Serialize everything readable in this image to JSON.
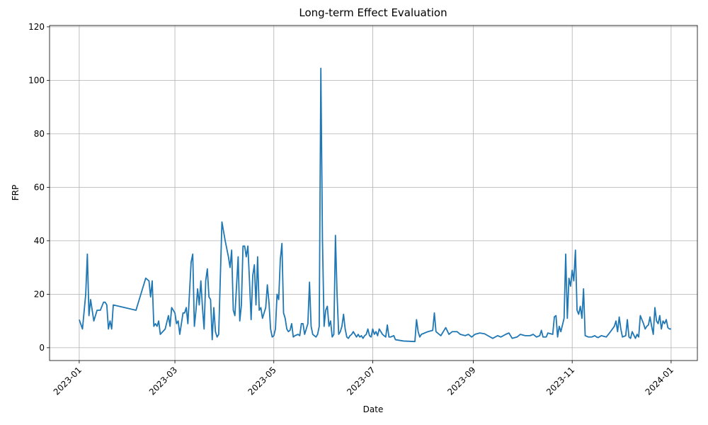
{
  "chart_data": {
    "type": "line",
    "title": "Long-term Effect Evaluation",
    "x_label": "Date",
    "y_label": "FRP",
    "color": "#1f77b4",
    "grid": true,
    "xlim": [
      -18.3,
      381.2
    ],
    "ylim": [
      -4.8,
      120.5
    ],
    "xticks": [
      {
        "value": 0,
        "label": "2023-01"
      },
      {
        "value": 59,
        "label": "2023-03"
      },
      {
        "value": 120,
        "label": "2023-05"
      },
      {
        "value": 181,
        "label": "2023-07"
      },
      {
        "value": 243,
        "label": "2023-09"
      },
      {
        "value": 304,
        "label": "2023-11"
      },
      {
        "value": 365,
        "label": "2024-01"
      }
    ],
    "yticks": [
      0,
      20,
      40,
      60,
      80,
      100,
      120
    ],
    "x": [
      0,
      2,
      4,
      5,
      6,
      7,
      9,
      11,
      13,
      15,
      16,
      17,
      18,
      19,
      20,
      21,
      35,
      41,
      43,
      44,
      45,
      46,
      47,
      48,
      49,
      50,
      53,
      55,
      56,
      57,
      59,
      60,
      61,
      62,
      64,
      65,
      66,
      67,
      69,
      70,
      71,
      72,
      73,
      74,
      75,
      76,
      77,
      78,
      79,
      80,
      81,
      82,
      83,
      84,
      85,
      86,
      88,
      90,
      92,
      93,
      94,
      95,
      96,
      98,
      99,
      100,
      101,
      102,
      103,
      104,
      105,
      106,
      107,
      108,
      109,
      110,
      111,
      112,
      113,
      114,
      115,
      116,
      117,
      118,
      119,
      120,
      121,
      122,
      123,
      124,
      125,
      126,
      127,
      128,
      129,
      130,
      131,
      132,
      133,
      135,
      136,
      137,
      138,
      139,
      140,
      141,
      142,
      143,
      144,
      145,
      146,
      147,
      148,
      149,
      150,
      151,
      152,
      153,
      154,
      155,
      156,
      157,
      158,
      159,
      160,
      161,
      162,
      163,
      164,
      165,
      166,
      167,
      168,
      169,
      170,
      171,
      172,
      173,
      174,
      175,
      176,
      177,
      178,
      179,
      180,
      181,
      182,
      183,
      184,
      185,
      186,
      187,
      188,
      189,
      190,
      191,
      192,
      194,
      195,
      200,
      207,
      208,
      209,
      210,
      211,
      213,
      215,
      218,
      219,
      220,
      223,
      226,
      228,
      230,
      233,
      235,
      238,
      240,
      242,
      244,
      247,
      250,
      252,
      255,
      258,
      260,
      263,
      265,
      267,
      270,
      272,
      275,
      278,
      280,
      282,
      284,
      285,
      286,
      288,
      289,
      292,
      293,
      294,
      295,
      296,
      297,
      299,
      300,
      301,
      302,
      303,
      304,
      305,
      306,
      307,
      308,
      309,
      310,
      311,
      312,
      314,
      316,
      318,
      319,
      320,
      322,
      325,
      327,
      330,
      331,
      332,
      333,
      334,
      335,
      337,
      338,
      339,
      340,
      341,
      343,
      344,
      345,
      346,
      348,
      349,
      350,
      351,
      352,
      353,
      354,
      355,
      356,
      357,
      358,
      359,
      360,
      361,
      362,
      363,
      364,
      365
    ],
    "values": [
      10.5,
      7,
      20,
      35,
      12,
      18,
      10,
      14,
      14,
      17,
      17,
      16,
      7,
      10,
      7,
      16,
      14,
      26,
      25,
      19,
      25,
      8,
      9,
      8,
      10,
      5,
      7,
      12,
      8,
      15,
      13,
      9,
      10,
      5,
      13,
      13,
      15,
      9,
      32,
      35,
      8,
      14,
      22,
      16,
      25,
      15,
      7,
      25,
      29.5,
      19,
      18,
      3,
      15,
      6,
      4,
      5,
      47,
      40,
      34,
      30,
      36.5,
      14,
      12,
      34,
      10,
      16,
      38,
      38,
      34,
      38,
      25,
      10.5,
      27,
      31,
      16,
      34,
      14,
      15,
      11,
      13,
      15,
      23.5,
      17,
      7,
      4,
      4.5,
      7,
      20,
      18,
      33,
      39,
      13,
      11,
      7,
      6,
      6.5,
      9,
      4,
      4.5,
      5,
      4.5,
      9,
      9,
      5,
      7,
      9,
      24.5,
      8,
      5,
      4.5,
      4,
      5,
      8,
      104.5,
      40,
      8,
      14,
      15.5,
      8,
      10,
      4,
      5,
      42,
      20,
      5,
      6,
      8,
      12.5,
      7,
      4,
      3.5,
      4.5,
      5,
      6,
      5,
      4,
      5,
      4,
      4.5,
      3.5,
      4.5,
      5,
      7,
      4.5,
      4,
      7,
      5,
      6,
      4.5,
      7,
      6,
      5,
      4.5,
      4,
      8.5,
      4,
      4,
      4.5,
      3,
      2.5,
      2.3,
      10.5,
      6,
      4,
      5,
      5.5,
      6,
      6.5,
      13,
      6,
      4.5,
      7.5,
      5,
      6,
      6,
      5,
      4.5,
      5,
      4,
      5,
      5.5,
      5.2,
      4.5,
      3.5,
      4.5,
      4,
      5,
      5.5,
      3.5,
      4,
      5,
      4.5,
      4.5,
      5,
      4,
      4.5,
      6.5,
      4,
      4,
      5.5,
      5,
      11.5,
      12,
      4,
      8,
      6,
      11,
      35,
      11,
      26,
      23,
      29,
      25,
      36.5,
      14,
      12.5,
      15.5,
      11,
      22,
      4.5,
      4,
      4,
      4.5,
      4,
      3.8,
      4.5,
      4,
      5.5,
      8,
      10,
      6,
      11.5,
      7,
      4,
      4.5,
      10.5,
      4,
      3.5,
      6,
      3.5,
      5,
      4,
      12,
      9,
      7,
      8,
      8.5,
      11.5,
      8,
      5,
      15,
      10,
      9,
      12,
      7,
      10,
      9,
      10.5,
      7.5,
      7,
      7
    ]
  }
}
